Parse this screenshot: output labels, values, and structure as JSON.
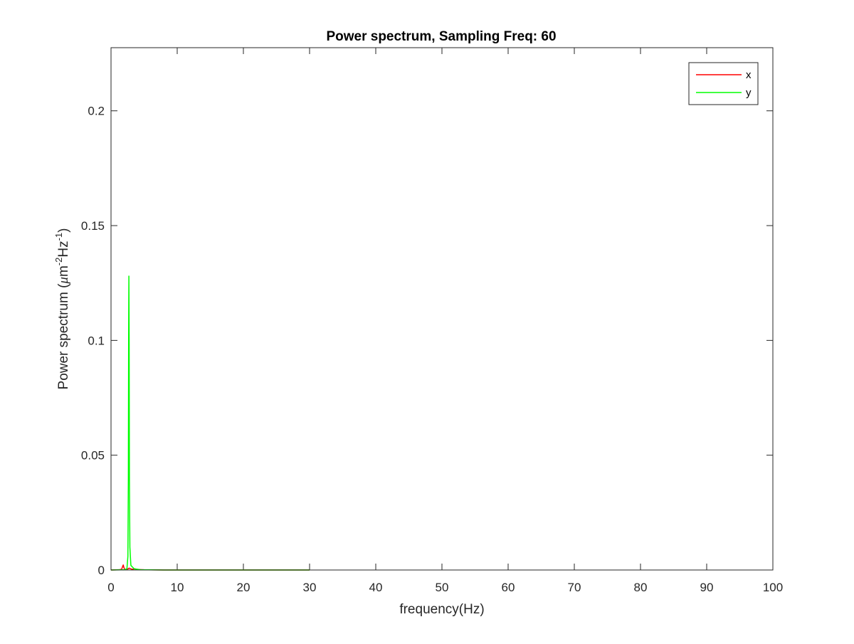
{
  "chart_data": {
    "type": "line",
    "title": "Power spectrum, Sampling Freq: 60",
    "xlabel": "frequency(Hz)",
    "ylabel": {
      "base": "Power spectrum (",
      "mu": "μ",
      "m": "m",
      "m_exp": "-2",
      "hz": "Hz",
      "hz_exp": "-1",
      "close": ")"
    },
    "xlim": [
      0,
      100
    ],
    "ylim": [
      0,
      0.2275
    ],
    "x_ticks": [
      0,
      10,
      20,
      30,
      40,
      50,
      60,
      70,
      80,
      90,
      100
    ],
    "x_tick_labels": [
      "0",
      "10",
      "20",
      "30",
      "40",
      "50",
      "60",
      "70",
      "80",
      "90",
      "100"
    ],
    "y_ticks": [
      0,
      0.05,
      0.1,
      0.15,
      0.2
    ],
    "y_tick_labels": [
      "0",
      "0.05",
      "0.1",
      "0.15",
      "0.2"
    ],
    "grid": false,
    "legend_position": "top-right",
    "series": [
      {
        "name": "x",
        "color": "#ff0000",
        "points": [
          [
            0,
            0
          ],
          [
            1.2,
            0.0001
          ],
          [
            1.6,
            0.0003
          ],
          [
            1.75,
            0.0015
          ],
          [
            1.85,
            0.0022
          ],
          [
            1.95,
            0.001
          ],
          [
            2.1,
            0.0002
          ],
          [
            2.5,
            0.0004
          ],
          [
            2.75,
            0.0008
          ],
          [
            2.9,
            0.0006
          ],
          [
            3.2,
            0.0003
          ],
          [
            3.6,
            0.0005
          ],
          [
            4.0,
            0.0002
          ],
          [
            5,
            0.0001
          ],
          [
            8,
            0
          ],
          [
            30,
            0
          ]
        ]
      },
      {
        "name": "y",
        "color": "#00ff00",
        "points": [
          [
            0,
            0
          ],
          [
            2.0,
            0.0001
          ],
          [
            2.4,
            0.0005
          ],
          [
            2.55,
            0.006
          ],
          [
            2.62,
            0.04
          ],
          [
            2.66,
            0.1
          ],
          [
            2.7,
            0.128
          ],
          [
            2.74,
            0.1
          ],
          [
            2.78,
            0.04
          ],
          [
            2.85,
            0.01
          ],
          [
            3.0,
            0.002
          ],
          [
            3.5,
            0.0005
          ],
          [
            4.5,
            0.0001
          ],
          [
            8,
            0
          ],
          [
            30,
            0
          ]
        ]
      }
    ]
  }
}
